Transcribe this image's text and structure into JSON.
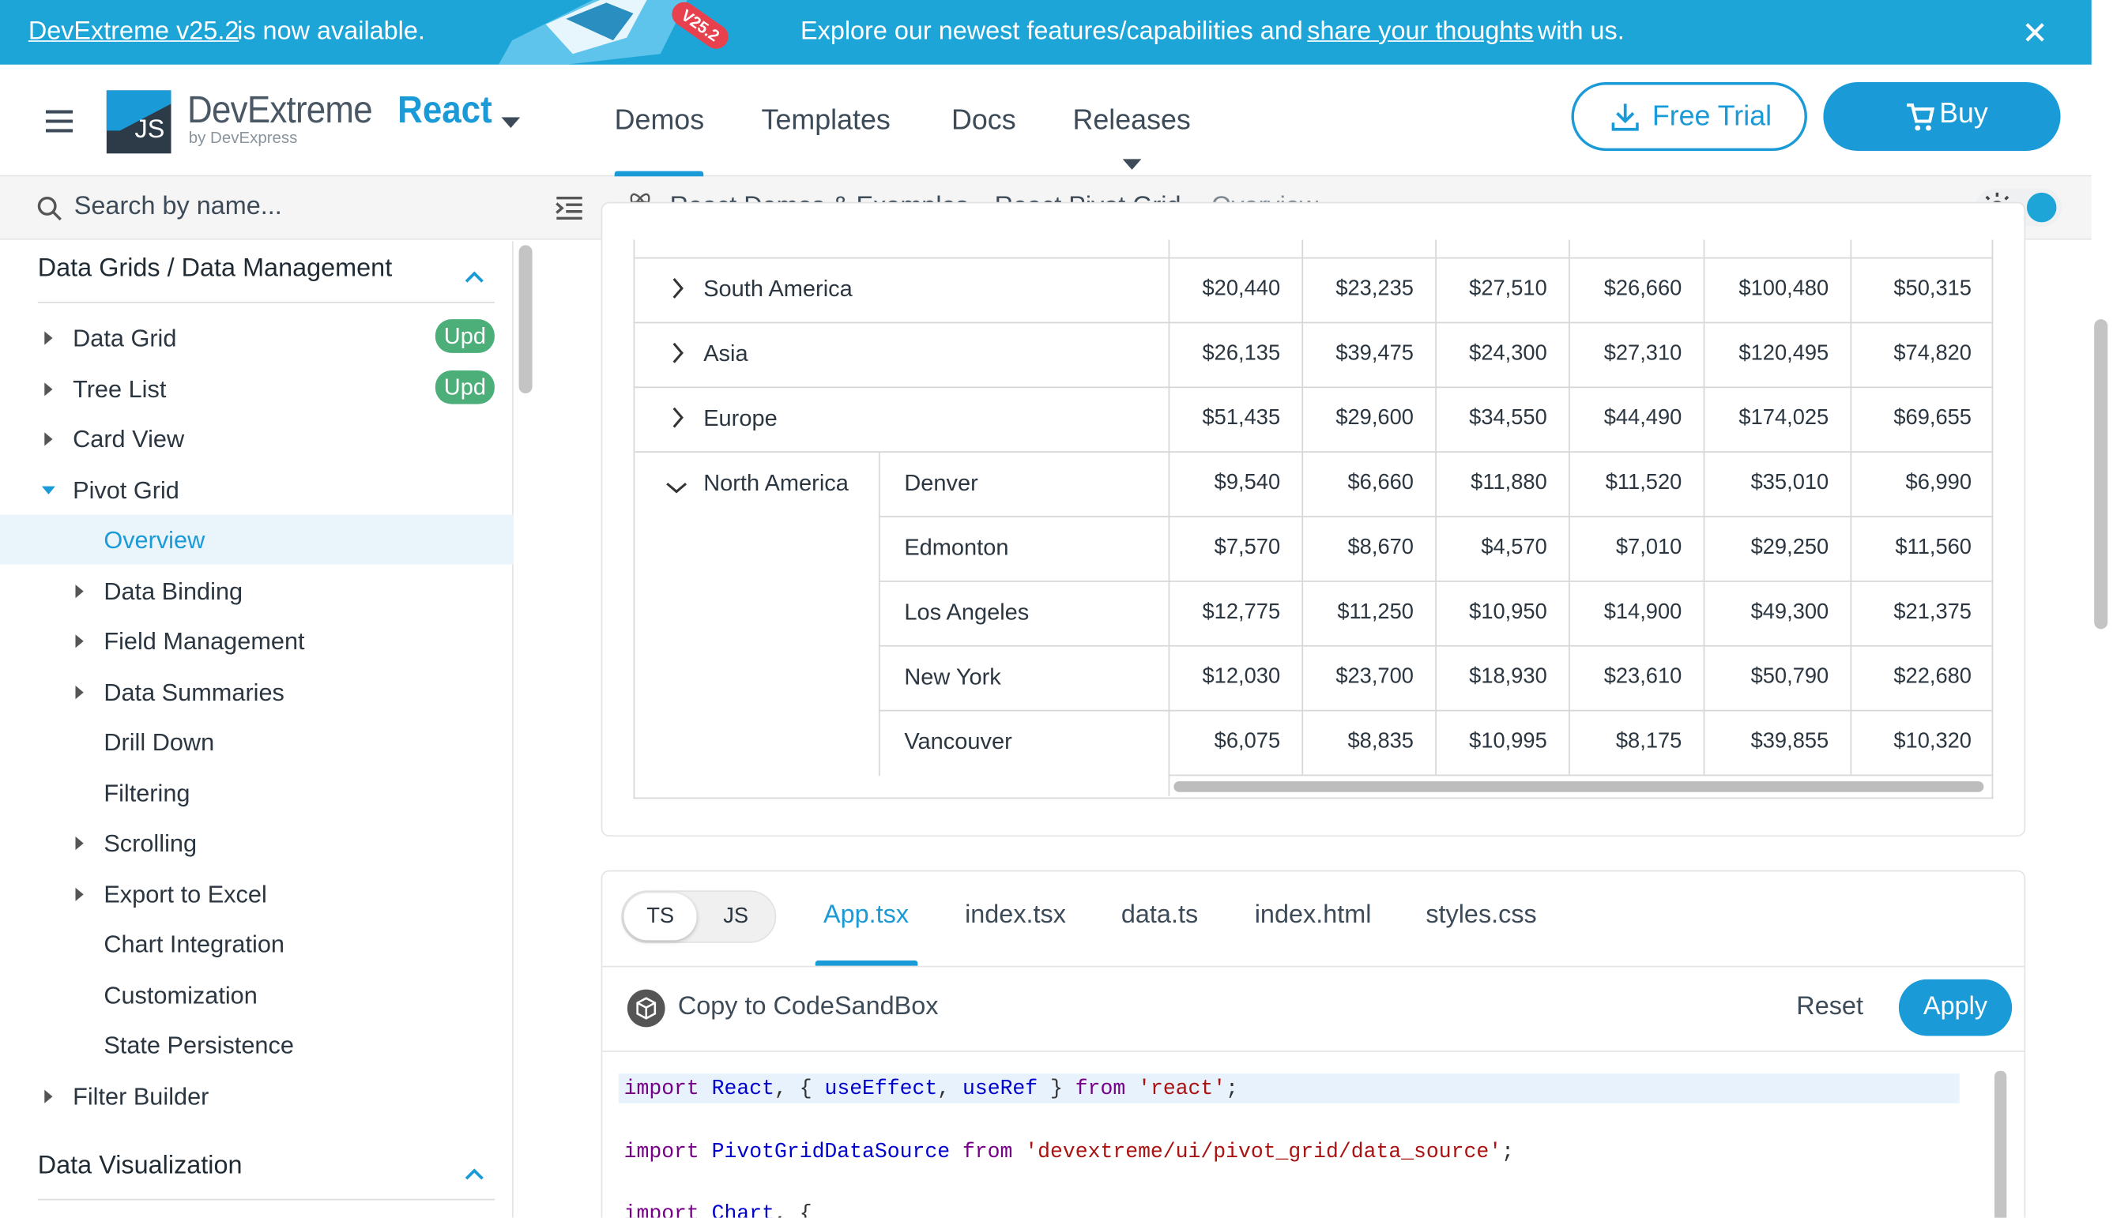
{
  "banner": {
    "link": "DevExtreme v25.2",
    "text": "is now available.",
    "badge": "V25.2",
    "message": "Explore our newest features/capabilities and",
    "message_link": "share your thoughts",
    "message_end": "with us."
  },
  "header": {
    "brand": "DevExtreme",
    "product": "React",
    "by": "by DevExpress",
    "logo": "JS",
    "nav": [
      "Demos",
      "Templates",
      "Docs",
      "Releases"
    ],
    "free_trial": "Free Trial",
    "buy": "Buy"
  },
  "sidebar": {
    "search": "Search by name...",
    "sections": [
      {
        "title": "Data Grids / Data Management",
        "items": [
          {
            "label": "Data Grid",
            "badge": "Upd",
            "level": 1,
            "expander": "closed"
          },
          {
            "label": "Tree List",
            "badge": "Upd",
            "level": 1,
            "expander": "closed"
          },
          {
            "label": "Card View",
            "level": 1,
            "expander": "closed"
          },
          {
            "label": "Pivot Grid",
            "level": 1,
            "expander": "open"
          },
          {
            "label": "Overview",
            "level": 2,
            "selected": true
          },
          {
            "label": "Data Binding",
            "level": 2,
            "expander": "closed"
          },
          {
            "label": "Field Management",
            "level": 2,
            "expander": "closed"
          },
          {
            "label": "Data Summaries",
            "level": 2,
            "expander": "closed"
          },
          {
            "label": "Drill Down",
            "level": 2
          },
          {
            "label": "Filtering",
            "level": 2
          },
          {
            "label": "Scrolling",
            "level": 2,
            "expander": "closed"
          },
          {
            "label": "Export to Excel",
            "level": 2,
            "expander": "closed"
          },
          {
            "label": "Chart Integration",
            "level": 2
          },
          {
            "label": "Customization",
            "level": 2
          },
          {
            "label": "State Persistence",
            "level": 2
          },
          {
            "label": "Filter Builder",
            "level": 1,
            "expander": "closed"
          }
        ]
      },
      {
        "title": "Data Visualization",
        "items": []
      }
    ]
  },
  "breadcrumb": [
    "React Demos & Examples",
    "React Pivot Grid",
    "Overview"
  ],
  "pivot": {
    "rows": [
      {
        "region": "South America",
        "expanded": false,
        "values": [
          "$20,440",
          "$23,235",
          "$27,510",
          "$26,660",
          "$100,480",
          "$50,315"
        ]
      },
      {
        "region": "Asia",
        "expanded": false,
        "values": [
          "$26,135",
          "$39,475",
          "$24,300",
          "$27,310",
          "$120,495",
          "$74,820"
        ]
      },
      {
        "region": "Europe",
        "expanded": false,
        "values": [
          "$51,435",
          "$29,600",
          "$34,550",
          "$44,490",
          "$174,025",
          "$69,655"
        ]
      },
      {
        "region": "North America",
        "expanded": true,
        "cities": [
          {
            "name": "Denver",
            "values": [
              "$9,540",
              "$6,660",
              "$11,880",
              "$11,520",
              "$35,010",
              "$6,990"
            ]
          },
          {
            "name": "Edmonton",
            "values": [
              "$7,570",
              "$8,670",
              "$4,570",
              "$7,010",
              "$29,250",
              "$11,560"
            ]
          },
          {
            "name": "Los Angeles",
            "values": [
              "$12,775",
              "$11,250",
              "$10,950",
              "$14,900",
              "$49,300",
              "$21,375"
            ]
          },
          {
            "name": "New York",
            "values": [
              "$12,030",
              "$23,700",
              "$18,930",
              "$23,610",
              "$50,790",
              "$22,680"
            ]
          },
          {
            "name": "Vancouver",
            "values": [
              "$6,075",
              "$8,835",
              "$10,995",
              "$8,175",
              "$39,855",
              "$10,320"
            ]
          }
        ]
      }
    ]
  },
  "code": {
    "lang_tabs": [
      "TS",
      "JS"
    ],
    "active_lang": 0,
    "file_tabs": [
      "App.tsx",
      "index.tsx",
      "data.ts",
      "index.html",
      "styles.css"
    ],
    "active_file": 0,
    "sandbox": "Copy to CodeSandBox",
    "reset": "Reset",
    "apply": "Apply",
    "lines": [
      [
        [
          "import",
          "#770088"
        ],
        [
          " ",
          "#333"
        ],
        [
          "React",
          "#0000cc"
        ],
        [
          ", { ",
          "#333"
        ],
        [
          "useEffect",
          "#0000cc"
        ],
        [
          ", ",
          "#333"
        ],
        [
          "useRef",
          "#0000cc"
        ],
        [
          " } ",
          "#333"
        ],
        [
          "from",
          "#770088"
        ],
        [
          " ",
          "#333"
        ],
        [
          "'react'",
          "#aa1111"
        ],
        [
          ";",
          "#333"
        ]
      ],
      [],
      [
        [
          "import",
          "#770088"
        ],
        [
          " ",
          "#333"
        ],
        [
          "PivotGridDataSource",
          "#0000cc"
        ],
        [
          " ",
          "#333"
        ],
        [
          "from",
          "#770088"
        ],
        [
          " ",
          "#333"
        ],
        [
          "'devextreme/ui/pivot_grid/data_source'",
          "#aa1111"
        ],
        [
          ";",
          "#333"
        ]
      ],
      [],
      [
        [
          "import",
          "#770088"
        ],
        [
          " ",
          "#333"
        ],
        [
          "Chart",
          "#0000cc"
        ],
        [
          ", {",
          "#333"
        ]
      ]
    ]
  }
}
